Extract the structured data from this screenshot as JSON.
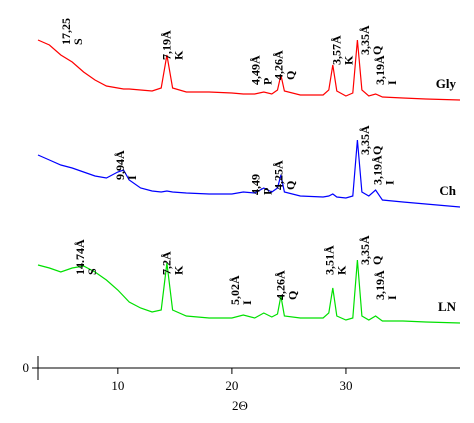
{
  "chart_data": {
    "type": "line",
    "x_label": "2Θ",
    "xlim": [
      3,
      40
    ],
    "xticks": [
      10,
      20,
      30
    ],
    "ylim": [
      0,
      358
    ],
    "yticks": [
      0
    ],
    "x": [
      3,
      4,
      5,
      6,
      7,
      8,
      9,
      10,
      10.5,
      11,
      12,
      13,
      13.8,
      14.3,
      14.8,
      16,
      18,
      20,
      21,
      22,
      22.8,
      23.5,
      24,
      24.3,
      24.6,
      26,
      28,
      28.5,
      28.85,
      29.2,
      30,
      30.6,
      31,
      31.4,
      32,
      32.6,
      33.2,
      35,
      37,
      40
    ],
    "series": [
      {
        "name": "Gly",
        "color": "#ff0000",
        "values": [
          328,
          323,
          313,
          306,
          296,
          288,
          282,
          280,
          279,
          279,
          278,
          277,
          280,
          313,
          280,
          276,
          276,
          275,
          274,
          274,
          276,
          274,
          278,
          293,
          277,
          273,
          273,
          278,
          303,
          277,
          272,
          275,
          328,
          278,
          272,
          274,
          271,
          270,
          269,
          268
        ]
      },
      {
        "name": "Ch",
        "color": "#0000ff",
        "values": [
          213,
          208,
          203,
          200,
          196,
          192,
          190,
          196,
          198,
          188,
          180,
          177,
          176,
          177,
          176,
          175,
          174,
          174,
          176,
          175,
          180,
          176,
          180,
          193,
          176,
          172,
          171,
          172,
          174,
          171,
          170,
          172,
          228,
          176,
          172,
          178,
          168,
          166,
          164,
          161
        ]
      },
      {
        "name": "LN",
        "color": "#00e000",
        "values": [
          103,
          100,
          96,
          100,
          102,
          96,
          88,
          78,
          72,
          66,
          60,
          56,
          58,
          105,
          58,
          52,
          50,
          50,
          53,
          50,
          55,
          51,
          54,
          72,
          52,
          50,
          50,
          55,
          80,
          52,
          48,
          50,
          108,
          52,
          48,
          52,
          47,
          47,
          46,
          45
        ]
      }
    ],
    "annotations": [
      {
        "label": "17,25",
        "phase": "S",
        "x": 6.0,
        "y": 323
      },
      {
        "label": "7,19Å",
        "phase": "K",
        "x": 14.8,
        "y": 308
      },
      {
        "label": "4,49Å",
        "phase": "P",
        "x": 22.6,
        "y": 283
      },
      {
        "label": "4,26Å",
        "phase": "Q",
        "x": 24.6,
        "y": 288
      },
      {
        "label": "3,57Å",
        "phase": "K",
        "x": 29.7,
        "y": 303
      },
      {
        "label": "3,35Å",
        "phase": "Q",
        "x": 32.2,
        "y": 313
      },
      {
        "label": "3,19Å",
        "phase": "I",
        "x": 33.5,
        "y": 283
      },
      {
        "label": "9,94Å",
        "phase": "I",
        "x": 10.7,
        "y": 188
      },
      {
        "label": "4,49",
        "phase": "P",
        "x": 22.6,
        "y": 173
      },
      {
        "label": "4,25Å",
        "phase": "Q",
        "x": 24.6,
        "y": 178
      },
      {
        "label": "3,35Å",
        "phase": "Q",
        "x": 32.2,
        "y": 213
      },
      {
        "label": "3,19Å",
        "phase": "I",
        "x": 33.3,
        "y": 183
      },
      {
        "label": "14.74Å",
        "phase": "S",
        "x": 7.2,
        "y": 93
      },
      {
        "label": "7,2Å",
        "phase": "K",
        "x": 14.8,
        "y": 93
      },
      {
        "label": "5,02Å",
        "phase": "I",
        "x": 20.8,
        "y": 63
      },
      {
        "label": "4,26Å",
        "phase": "Q",
        "x": 24.8,
        "y": 68
      },
      {
        "label": "3,51Å",
        "phase": "K",
        "x": 29.1,
        "y": 93
      },
      {
        "label": "3,35Å",
        "phase": "Q",
        "x": 32.2,
        "y": 103
      },
      {
        "label": "3,19Å",
        "phase": "I",
        "x": 33.5,
        "y": 68
      }
    ]
  }
}
